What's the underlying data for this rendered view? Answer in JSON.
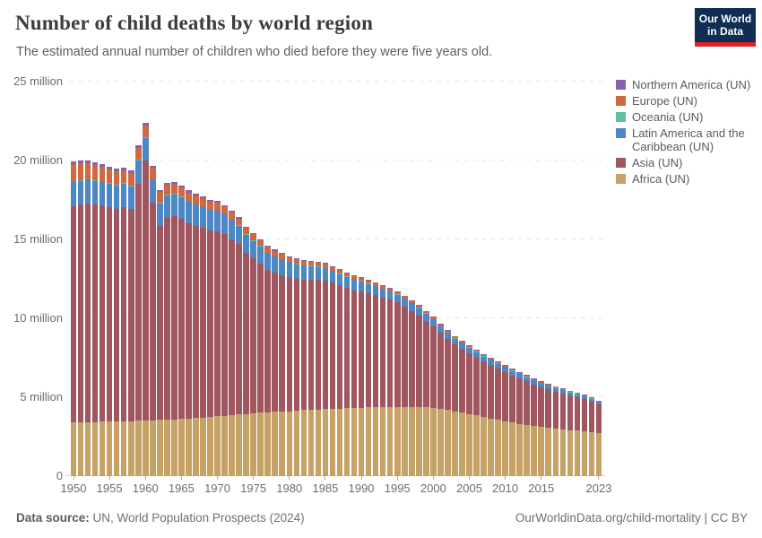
{
  "header": {
    "title": "Number of child deaths by world region",
    "subtitle": "The estimated annual number of children who died before they were five years old.",
    "logo": {
      "line1": "Our World",
      "line2": "in Data",
      "bg_color": "#0e2e52",
      "accent_color": "#dc2327"
    }
  },
  "chart_data": {
    "type": "bar",
    "stacked": true,
    "title": "Number of child deaths by world region",
    "values_unit": "million deaths per year",
    "ylim": [
      0,
      25
    ],
    "grid": true,
    "legend_position": "right",
    "years": [
      1950,
      1951,
      1952,
      1953,
      1954,
      1955,
      1956,
      1957,
      1958,
      1959,
      1960,
      1961,
      1962,
      1963,
      1964,
      1965,
      1966,
      1967,
      1968,
      1969,
      1970,
      1971,
      1972,
      1973,
      1974,
      1975,
      1976,
      1977,
      1978,
      1979,
      1980,
      1981,
      1982,
      1983,
      1984,
      1985,
      1986,
      1987,
      1988,
      1989,
      1990,
      1991,
      1992,
      1993,
      1994,
      1995,
      1996,
      1997,
      1998,
      1999,
      2000,
      2001,
      2002,
      2003,
      2004,
      2005,
      2006,
      2007,
      2008,
      2009,
      2010,
      2011,
      2012,
      2013,
      2014,
      2015,
      2016,
      2017,
      2018,
      2019,
      2020,
      2021,
      2022,
      2023
    ],
    "yticks": [
      {
        "value": 0,
        "label": "0"
      },
      {
        "value": 5,
        "label": "5 million"
      },
      {
        "value": 10,
        "label": "10 million"
      },
      {
        "value": 15,
        "label": "15 million"
      },
      {
        "value": 20,
        "label": "20 million"
      },
      {
        "value": 25,
        "label": "25 million"
      }
    ],
    "xtick_years": [
      1950,
      1955,
      1960,
      1965,
      1970,
      1975,
      1980,
      1985,
      1990,
      1995,
      2000,
      2005,
      2010,
      2015,
      2023
    ],
    "series": [
      {
        "key": "africa",
        "name": "Africa (UN)",
        "color": "#c6a267",
        "values": [
          3.4,
          3.41,
          3.42,
          3.43,
          3.44,
          3.45,
          3.46,
          3.48,
          3.49,
          3.5,
          3.52,
          3.54,
          3.56,
          3.58,
          3.6,
          3.62,
          3.65,
          3.68,
          3.71,
          3.74,
          3.78,
          3.82,
          3.86,
          3.9,
          3.94,
          3.98,
          4.01,
          4.04,
          4.07,
          4.1,
          4.12,
          4.15,
          4.18,
          4.2,
          4.23,
          4.25,
          4.27,
          4.29,
          4.31,
          4.32,
          4.33,
          4.35,
          4.36,
          4.37,
          4.38,
          4.38,
          4.38,
          4.37,
          4.37,
          4.35,
          4.32,
          4.26,
          4.2,
          4.12,
          4.03,
          3.94,
          3.85,
          3.76,
          3.66,
          3.57,
          3.48,
          3.4,
          3.32,
          3.25,
          3.18,
          3.12,
          3.06,
          3.01,
          2.96,
          2.92,
          2.88,
          2.84,
          2.79,
          2.74
        ]
      },
      {
        "key": "asia",
        "name": "Asia (UN)",
        "color": "#a0565f",
        "values": [
          13.73,
          13.81,
          13.88,
          13.79,
          13.7,
          13.59,
          13.5,
          13.58,
          13.42,
          15.04,
          16.48,
          13.8,
          12.32,
          12.8,
          12.87,
          12.67,
          12.37,
          12.19,
          12.01,
          11.83,
          11.75,
          11.52,
          11.16,
          10.8,
          10.21,
          9.81,
          9.45,
          9.05,
          8.83,
          8.65,
          8.49,
          8.35,
          8.29,
          8.25,
          8.21,
          8.14,
          7.98,
          7.8,
          7.63,
          7.46,
          7.39,
          7.24,
          7.11,
          6.96,
          6.79,
          6.62,
          6.38,
          6.11,
          5.83,
          5.5,
          5.19,
          4.81,
          4.5,
          4.22,
          4.06,
          3.86,
          3.67,
          3.49,
          3.38,
          3.24,
          3.14,
          2.98,
          2.87,
          2.76,
          2.64,
          2.53,
          2.44,
          2.35,
          2.27,
          2.17,
          2.1,
          2.02,
          1.94,
          1.8
        ]
      },
      {
        "key": "latin-america",
        "name": "Latin America and the Caribbean (UN)",
        "color": "#4c87c6",
        "values": [
          1.5,
          1.5,
          1.49,
          1.49,
          1.48,
          1.48,
          1.47,
          1.47,
          1.46,
          1.46,
          1.45,
          1.44,
          1.42,
          1.41,
          1.4,
          1.38,
          1.36,
          1.34,
          1.32,
          1.3,
          1.28,
          1.25,
          1.22,
          1.18,
          1.15,
          1.12,
          1.09,
          1.05,
          1.02,
          0.98,
          0.95,
          0.92,
          0.88,
          0.85,
          0.81,
          0.78,
          0.75,
          0.72,
          0.68,
          0.65,
          0.62,
          0.59,
          0.57,
          0.54,
          0.52,
          0.5,
          0.48,
          0.47,
          0.45,
          0.44,
          0.42,
          0.41,
          0.39,
          0.38,
          0.36,
          0.35,
          0.34,
          0.33,
          0.32,
          0.31,
          0.3,
          0.29,
          0.28,
          0.27,
          0.26,
          0.25,
          0.24,
          0.23,
          0.22,
          0.21,
          0.2,
          0.19,
          0.17,
          0.16
        ]
      },
      {
        "key": "oceania",
        "name": "Oceania (UN)",
        "color": "#62bda2",
        "values": [
          0.035,
          0.035,
          0.035,
          0.035,
          0.035,
          0.035,
          0.035,
          0.035,
          0.035,
          0.035,
          0.033,
          0.033,
          0.033,
          0.033,
          0.033,
          0.033,
          0.033,
          0.033,
          0.033,
          0.033,
          0.031,
          0.031,
          0.031,
          0.031,
          0.031,
          0.031,
          0.031,
          0.031,
          0.031,
          0.031,
          0.029,
          0.029,
          0.029,
          0.029,
          0.029,
          0.029,
          0.029,
          0.029,
          0.029,
          0.029,
          0.027,
          0.027,
          0.027,
          0.027,
          0.027,
          0.027,
          0.027,
          0.027,
          0.027,
          0.027,
          0.025,
          0.025,
          0.025,
          0.025,
          0.025,
          0.025,
          0.025,
          0.025,
          0.025,
          0.025,
          0.023,
          0.023,
          0.023,
          0.023,
          0.023,
          0.023,
          0.023,
          0.023,
          0.023,
          0.023,
          0.021,
          0.021,
          0.021,
          0.021
        ]
      },
      {
        "key": "europe",
        "name": "Europe (UN)",
        "color": "#d0693f",
        "values": [
          1.1,
          1.05,
          1.0,
          0.97,
          0.93,
          0.9,
          0.86,
          0.83,
          0.8,
          0.77,
          0.74,
          0.71,
          0.68,
          0.65,
          0.62,
          0.6,
          0.57,
          0.55,
          0.52,
          0.5,
          0.48,
          0.46,
          0.44,
          0.42,
          0.4,
          0.38,
          0.36,
          0.35,
          0.33,
          0.32,
          0.3,
          0.29,
          0.28,
          0.27,
          0.26,
          0.25,
          0.24,
          0.23,
          0.22,
          0.21,
          0.2,
          0.19,
          0.18,
          0.17,
          0.16,
          0.15,
          0.14,
          0.13,
          0.13,
          0.12,
          0.11,
          0.11,
          0.1,
          0.1,
          0.09,
          0.09,
          0.08,
          0.08,
          0.08,
          0.07,
          0.07,
          0.07,
          0.07,
          0.06,
          0.06,
          0.06,
          0.06,
          0.06,
          0.05,
          0.05,
          0.05,
          0.05,
          0.05,
          0.05
        ]
      },
      {
        "key": "northern-america",
        "name": "Northern America (UN)",
        "color": "#8562ab",
        "values": [
          0.19,
          0.18,
          0.18,
          0.17,
          0.17,
          0.17,
          0.16,
          0.16,
          0.15,
          0.15,
          0.15,
          0.14,
          0.14,
          0.13,
          0.13,
          0.12,
          0.12,
          0.11,
          0.11,
          0.1,
          0.1,
          0.1,
          0.09,
          0.09,
          0.09,
          0.08,
          0.08,
          0.08,
          0.07,
          0.07,
          0.06,
          0.06,
          0.06,
          0.06,
          0.06,
          0.055,
          0.055,
          0.05,
          0.05,
          0.05,
          0.05,
          0.05,
          0.05,
          0.05,
          0.045,
          0.045,
          0.045,
          0.04,
          0.04,
          0.04,
          0.04,
          0.04,
          0.04,
          0.04,
          0.04,
          0.04,
          0.038,
          0.038,
          0.036,
          0.036,
          0.035,
          0.035,
          0.034,
          0.034,
          0.033,
          0.033,
          0.032,
          0.032,
          0.031,
          0.031,
          0.03,
          0.03,
          0.029,
          0.028
        ]
      }
    ],
    "legend": [
      {
        "label": "Northern America (UN)",
        "color": "#8562ab"
      },
      {
        "label": "Europe (UN)",
        "color": "#d0693f"
      },
      {
        "label": "Oceania (UN)",
        "color": "#62bda2"
      },
      {
        "label": "Latin America and the Caribbean (UN)",
        "color": "#4c87c6"
      },
      {
        "label": "Asia (UN)",
        "color": "#a0565f"
      },
      {
        "label": "Africa (UN)",
        "color": "#c6a267"
      }
    ]
  },
  "footer": {
    "source_label": "Data source:",
    "source_value": " UN, World Population Prospects (2024)",
    "credit": "OurWorldinData.org/child-mortality | CC BY"
  }
}
